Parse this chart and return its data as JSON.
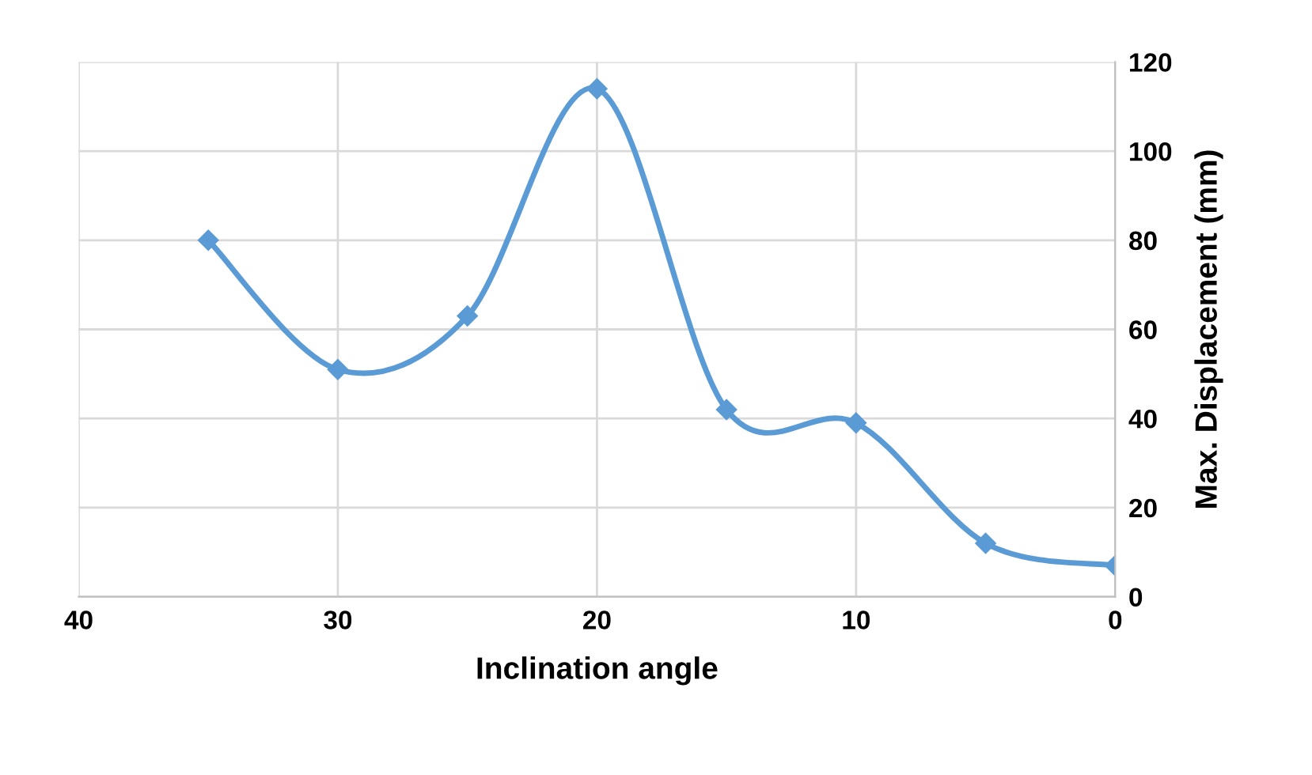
{
  "chart_data": {
    "type": "line",
    "xlabel": "Inclination angle",
    "ylabel": "Max. Displacement (mm)",
    "x": [
      35,
      30,
      25,
      20,
      15,
      10,
      5,
      0
    ],
    "series": [
      {
        "color": "#5b9bd5",
        "values": [
          80,
          51,
          63,
          114,
          42,
          39,
          12,
          7
        ]
      }
    ],
    "xlim": [
      40,
      0
    ],
    "xticks": [
      40,
      30,
      20,
      10,
      0
    ],
    "ylim": [
      0,
      120
    ],
    "yticks": [
      0,
      20,
      40,
      60,
      80,
      100,
      120
    ],
    "grid": true,
    "marker": "diamond",
    "line_style": "solid"
  }
}
